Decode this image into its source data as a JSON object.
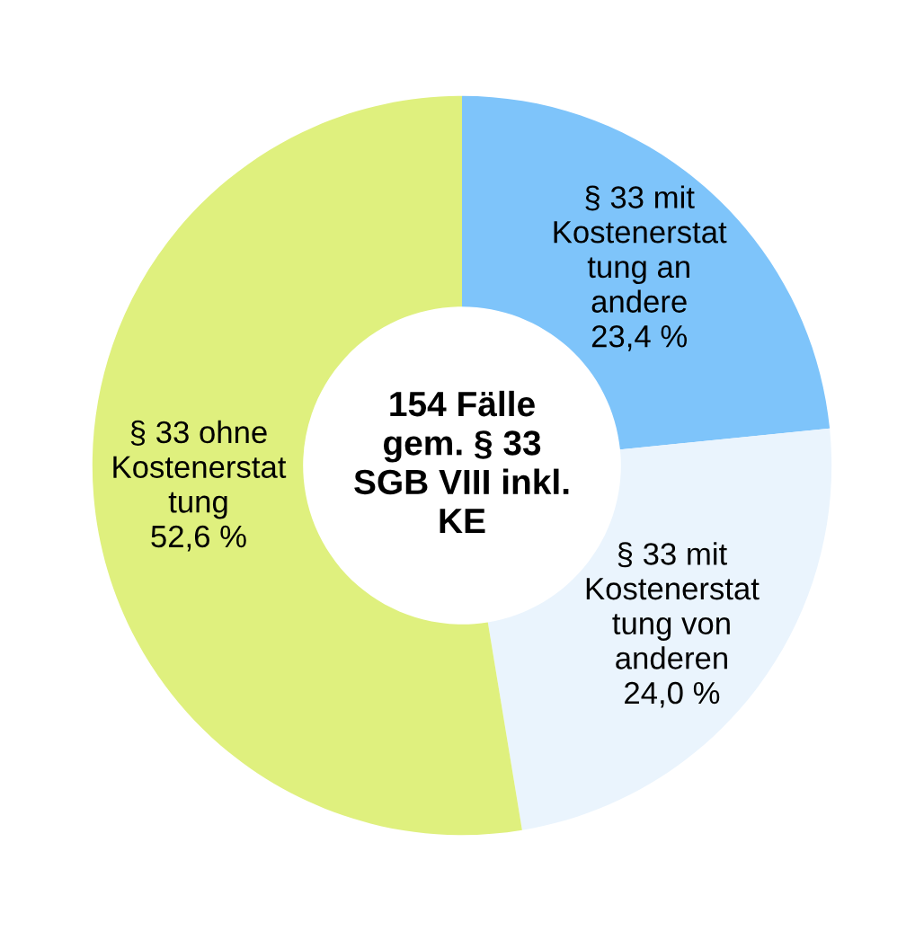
{
  "chart_data": {
    "type": "donut",
    "title": "154 Fälle\ngem. § 33\nSGB VIII inkl.\nKE",
    "categories": [
      "§ 33 mit\nKostenerstat\ntung an\nandere",
      "§ 33 mit\nKostenerstat\ntung von\nanderen",
      "§ 33 ohne\nKostenerstat\ntung"
    ],
    "values": [
      23.4,
      24.0,
      52.6
    ],
    "value_labels": [
      "23,4 %",
      "24,0 %",
      "52,6 %"
    ],
    "colors": [
      "#7ec4fa",
      "#eaf4fd",
      "#dff07e"
    ],
    "legend": false
  }
}
